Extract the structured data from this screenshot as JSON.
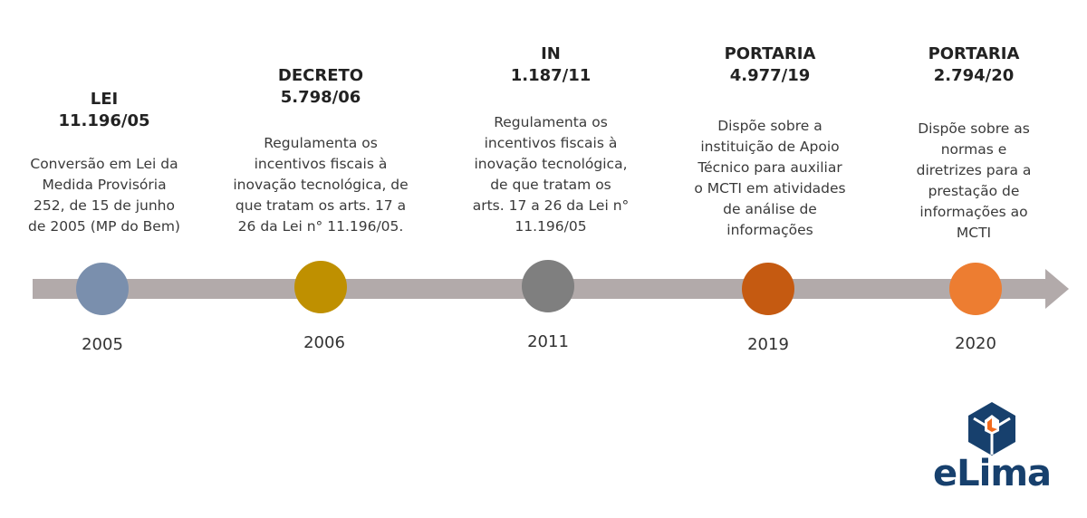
{
  "events": [
    {
      "title": "LEI\n11.196/05",
      "description": "Conversão em Lei da\nMedida Provisória\n252, de 15 de junho\nde 2005 (MP do Bem)",
      "year": "2005",
      "color": "#7a8fad"
    },
    {
      "title": "DECRETO\n5.798/06",
      "description": "Regulamenta os\nincentivos fiscais à\ninovação tecnológica, de\nque tratam os arts. 17 a\n26 da Lei n° 11.196/05.",
      "year": "2006",
      "color": "#bf9000"
    },
    {
      "title": "IN\n1.187/11",
      "description": "Regulamenta os\nincentivos fiscais à\ninovação tecnológica,\nde que tratam os\narts. 17 a 26 da Lei n°\n11.196/05",
      "year": "2011",
      "color": "#7f7f7f"
    },
    {
      "title": "PORTARIA\n4.977/19",
      "description": "Dispõe sobre a\ninstituição de Apoio\nTécnico para auxiliar\no MCTI em atividades\nde análise de\ninformações",
      "year": "2019",
      "color": "#c55a11"
    },
    {
      "title": "PORTARIA\n2.794/20",
      "description": "Dispõe sobre as\nnormas e\ndiretrizes para a\nprestação de\ninformações ao\nMCTI",
      "year": "2020",
      "color": "#ed7d31"
    }
  ],
  "timeline_color": "#b2aaaa",
  "logo": {
    "text": "eLima",
    "primary_color": "#17406d",
    "accent_color": "#f26a1b"
  }
}
